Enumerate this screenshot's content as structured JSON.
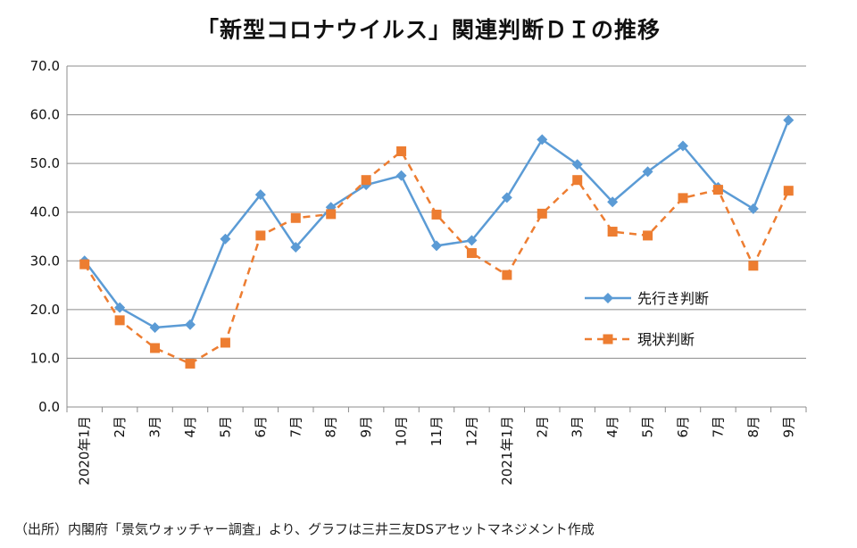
{
  "chart_data": {
    "type": "line",
    "title": "「新型コロナウイルス」関連判断ＤＩの推移",
    "categories": [
      "2020年1月",
      "2月",
      "3月",
      "4月",
      "5月",
      "6月",
      "7月",
      "8月",
      "9月",
      "10月",
      "11月",
      "12月",
      "2021年1月",
      "2月",
      "3月",
      "4月",
      "5月",
      "6月",
      "7月",
      "8月",
      "9月"
    ],
    "series": [
      {
        "name": "先行き判断",
        "color": "#5b9bd5",
        "marker": "diamond",
        "dash": "solid",
        "values": [
          30.0,
          20.4,
          16.3,
          16.9,
          34.5,
          43.6,
          32.8,
          41.0,
          45.6,
          47.5,
          33.1,
          34.2,
          43.0,
          54.9,
          49.8,
          42.1,
          48.3,
          53.6,
          45.1,
          40.7,
          58.9
        ]
      },
      {
        "name": "現状判断",
        "color": "#ed7d31",
        "marker": "square",
        "dash": "dashed",
        "values": [
          29.3,
          17.8,
          12.1,
          8.9,
          13.2,
          35.2,
          38.8,
          39.6,
          46.6,
          52.5,
          39.5,
          31.6,
          27.1,
          39.7,
          46.6,
          36.0,
          35.2,
          42.9,
          44.6,
          29.0,
          44.4
        ]
      }
    ],
    "ylim": [
      0,
      70
    ],
    "yticks": [
      "0.0",
      "10.0",
      "20.0",
      "30.0",
      "40.0",
      "50.0",
      "60.0",
      "70.0"
    ],
    "grid": true,
    "legend_position": "right"
  },
  "source_note": "（出所）内閣府「景気ウォッチャー調査」より、グラフは三井三友DSアセットマネジメント作成"
}
